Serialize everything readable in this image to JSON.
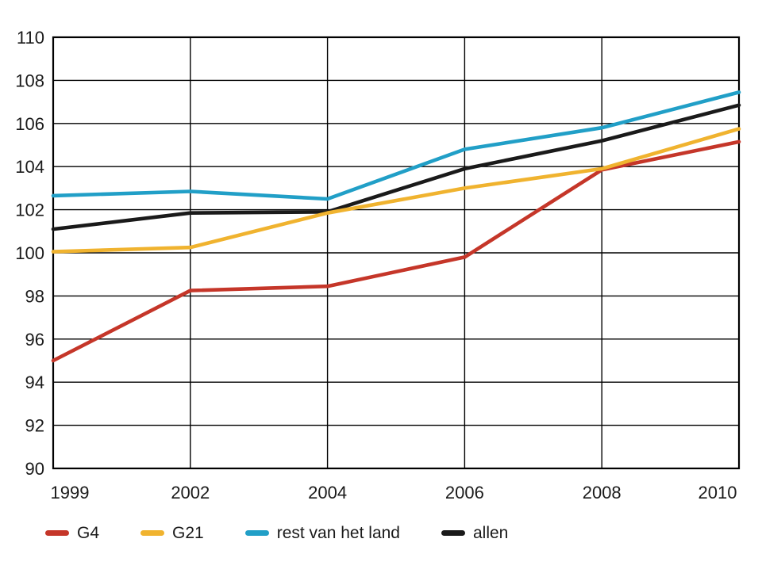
{
  "chart_data": {
    "type": "line",
    "title": "",
    "xlabel": "",
    "ylabel": "",
    "x_tick_labels": [
      "1999",
      "2002",
      "2004",
      "2006",
      "2008",
      "2010"
    ],
    "y_ticks": [
      90,
      92,
      94,
      96,
      98,
      100,
      102,
      104,
      106,
      108,
      110
    ],
    "ylim": [
      90,
      110
    ],
    "grid": true,
    "legend_position": "bottom",
    "axis_color": "#000000",
    "tick_text_color": "#1a1a1a",
    "series": [
      {
        "name": "G4",
        "color": "#c53629",
        "values": [
          95.0,
          98.25,
          98.45,
          99.8,
          103.85,
          105.15
        ]
      },
      {
        "name": "G21",
        "color": "#f0b32f",
        "values": [
          100.05,
          100.25,
          101.85,
          103.0,
          103.9,
          105.75
        ]
      },
      {
        "name": "rest van het land",
        "color": "#219fc7",
        "values": [
          102.65,
          102.85,
          102.5,
          104.8,
          105.8,
          107.45
        ]
      },
      {
        "name": "allen",
        "color": "#1a1a1a",
        "values": [
          101.1,
          101.85,
          101.9,
          103.9,
          105.2,
          106.85
        ]
      }
    ],
    "draw_order": [
      3,
      2,
      0,
      1
    ]
  }
}
